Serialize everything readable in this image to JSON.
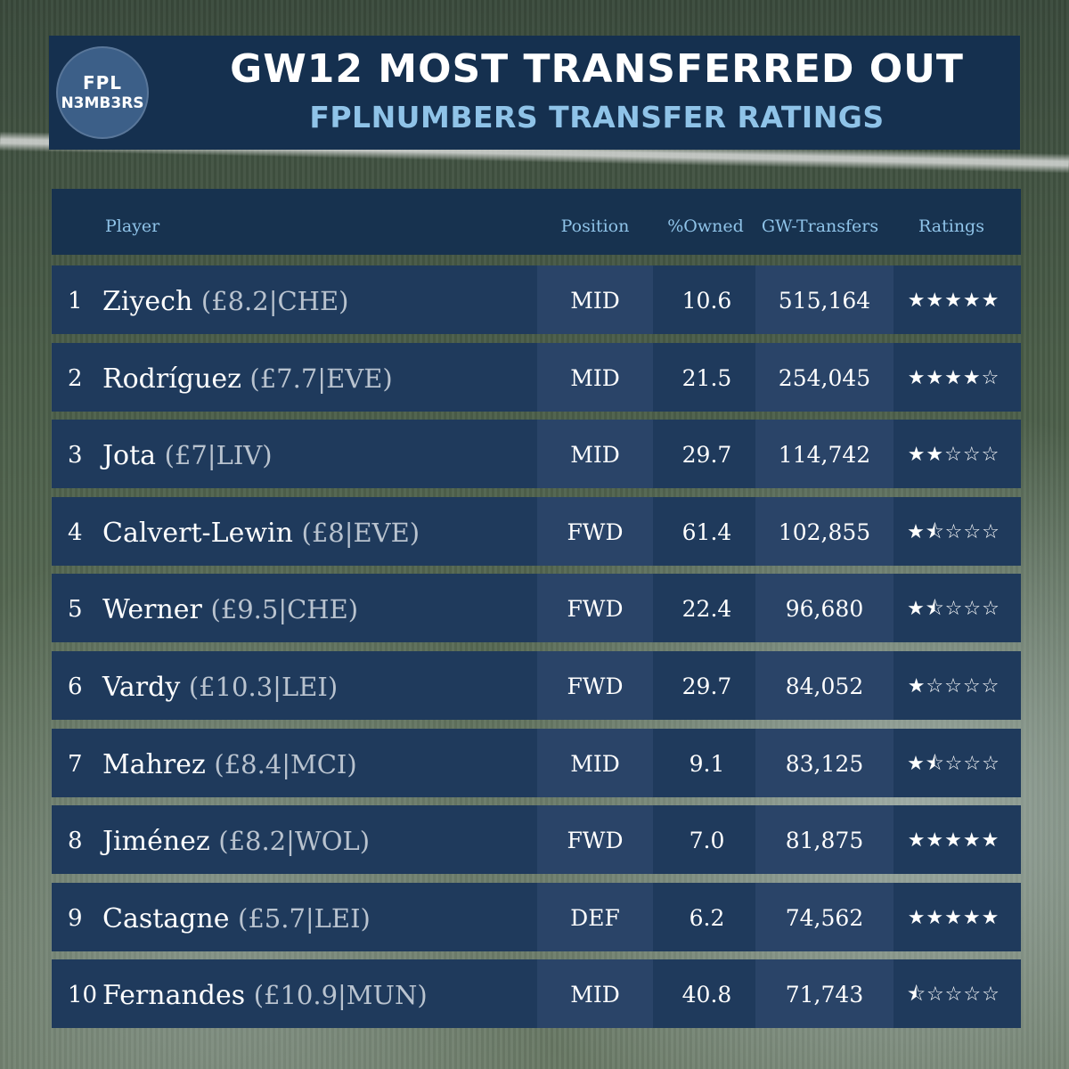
{
  "header": {
    "logo_line1": "FPL",
    "logo_line2": "N3MB3RS",
    "title": "GW12 MOST TRANSFERRED OUT",
    "subtitle": "FPLNUMBERS TRANSFER RATINGS"
  },
  "columns": {
    "player": "Player",
    "position": "Position",
    "owned": "%Owned",
    "transfers": "GW-Transfers",
    "ratings": "Ratings"
  },
  "rows": [
    {
      "rank": "1",
      "name": "Ziyech",
      "detail": "(£8.2|CHE)",
      "position": "MID",
      "owned": "10.6",
      "transfers": "515,164",
      "stars": "★★★★★",
      "rating": 5
    },
    {
      "rank": "2",
      "name": "Rodríguez",
      "detail": "(£7.7|EVE)",
      "position": "MID",
      "owned": "21.5",
      "transfers": "254,045",
      "stars": "★★★★☆",
      "rating": 4
    },
    {
      "rank": "3",
      "name": "Jota",
      "detail": "(£7|LIV)",
      "position": "MID",
      "owned": "29.7",
      "transfers": "114,742",
      "stars": "★★☆☆☆",
      "rating": 2
    },
    {
      "rank": "4",
      "name": "Calvert-Lewin",
      "detail": "(£8|EVE)",
      "position": "FWD",
      "owned": "61.4",
      "transfers": "102,855",
      "stars": "★⯪☆☆☆",
      "rating": 1.5
    },
    {
      "rank": "5",
      "name": "Werner",
      "detail": "(£9.5|CHE)",
      "position": "FWD",
      "owned": "22.4",
      "transfers": "96,680",
      "stars": "★⯪☆☆☆",
      "rating": 1.5
    },
    {
      "rank": "6",
      "name": "Vardy",
      "detail": "(£10.3|LEI)",
      "position": "FWD",
      "owned": "29.7",
      "transfers": "84,052",
      "stars": "★☆☆☆☆",
      "rating": 1
    },
    {
      "rank": "7",
      "name": "Mahrez",
      "detail": "(£8.4|MCI)",
      "position": "MID",
      "owned": "9.1",
      "transfers": "83,125",
      "stars": "★⯪☆☆☆",
      "rating": 1.5
    },
    {
      "rank": "8",
      "name": "Jiménez",
      "detail": "(£8.2|WOL)",
      "position": "FWD",
      "owned": "7.0",
      "transfers": "81,875",
      "stars": "★★★★★",
      "rating": 5
    },
    {
      "rank": "9",
      "name": "Castagne",
      "detail": "(£5.7|LEI)",
      "position": "DEF",
      "owned": "6.2",
      "transfers": "74,562",
      "stars": "★★★★★",
      "rating": 5
    },
    {
      "rank": "10",
      "name": "Fernandes",
      "detail": "(£10.9|MUN)",
      "position": "MID",
      "owned": "40.8",
      "transfers": "71,743",
      "stars": "⯪☆☆☆☆",
      "rating": 0.5
    }
  ]
}
